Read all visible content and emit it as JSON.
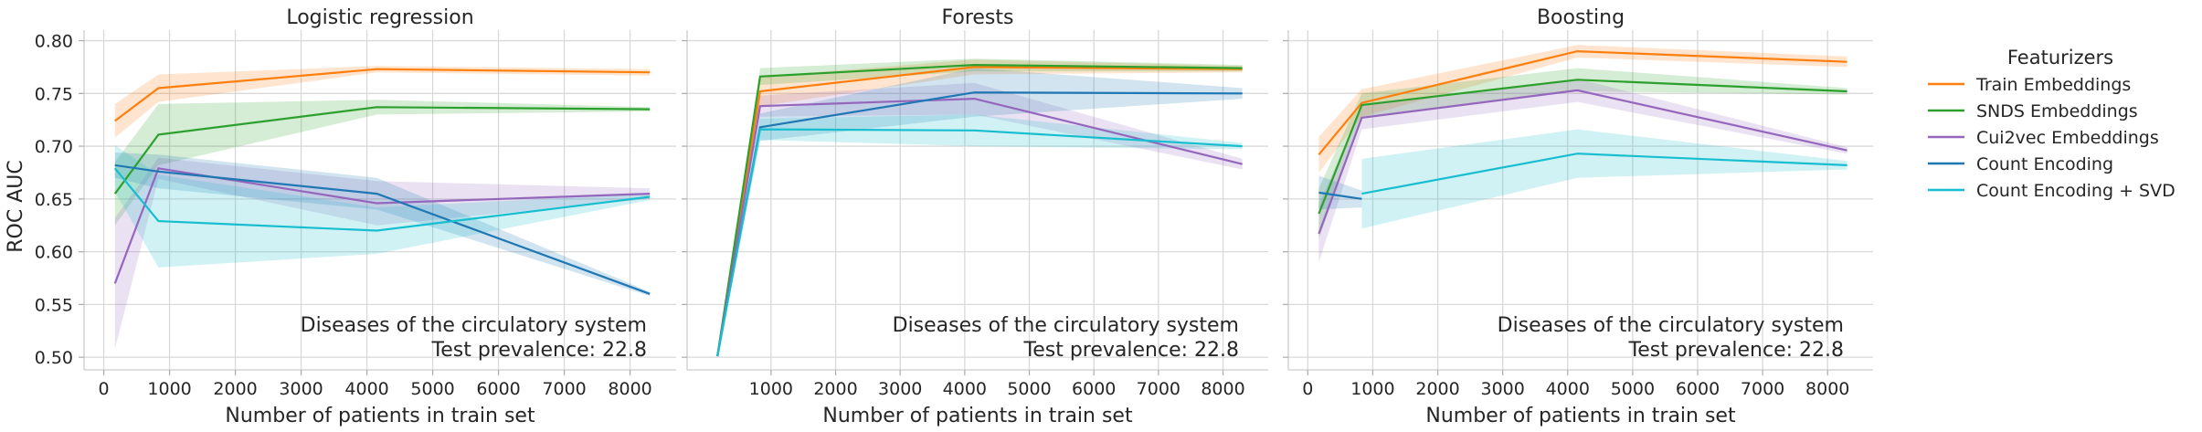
{
  "figure": {
    "ylabel": "ROC AUC",
    "xlabel": "Number of patients in train set",
    "annotation_line1": "Diseases of the circulatory system",
    "annotation_line2": "Test prevalence: 22.8"
  },
  "legend": {
    "title": "Featurizers",
    "placement": "outside-right"
  },
  "colors": {
    "Train Embeddings": "#ff7f0e",
    "SNDS Embeddings": "#2ca02c",
    "Cui2vec Embeddings": "#9467bd",
    "Count Encoding": "#1f77b4",
    "Count Encoding + SVD": "#17becf"
  },
  "chart_data": [
    {
      "type": "line",
      "title": "Logistic regression",
      "xlim": [
        -300,
        8700
      ],
      "ylim": [
        0.488,
        0.81
      ],
      "xticks": [
        0,
        1000,
        2000,
        3000,
        4000,
        5000,
        6000,
        7000,
        8000
      ],
      "yticks": [
        0.5,
        0.55,
        0.6,
        0.65,
        0.7,
        0.75,
        0.8
      ],
      "grid": true,
      "series": [
        {
          "name": "Train Embeddings",
          "x": [
            170,
            830,
            4150,
            8300
          ],
          "y": [
            0.724,
            0.755,
            0.773,
            0.77
          ],
          "lower": [
            0.708,
            0.742,
            0.77,
            0.767
          ],
          "upper": [
            0.74,
            0.768,
            0.776,
            0.773
          ]
        },
        {
          "name": "SNDS Embeddings",
          "x": [
            170,
            830,
            4150,
            8300
          ],
          "y": [
            0.655,
            0.711,
            0.737,
            0.735
          ],
          "lower": [
            0.625,
            0.682,
            0.73,
            0.733
          ],
          "upper": [
            0.685,
            0.74,
            0.744,
            0.737
          ]
        },
        {
          "name": "Cui2vec Embeddings",
          "x": [
            170,
            830,
            4150,
            8300
          ],
          "y": [
            0.57,
            0.679,
            0.646,
            0.655
          ],
          "lower": [
            0.508,
            0.669,
            0.625,
            0.65
          ],
          "upper": [
            0.632,
            0.689,
            0.667,
            0.66
          ]
        },
        {
          "name": "Count Encoding",
          "x": [
            170,
            830,
            4150,
            8300
          ],
          "y": [
            0.682,
            0.676,
            0.655,
            0.56
          ],
          "lower": [
            0.67,
            0.66,
            0.64,
            0.558
          ],
          "upper": [
            0.694,
            0.692,
            0.67,
            0.562
          ]
        },
        {
          "name": "Count Encoding + SVD",
          "x": [
            170,
            830,
            4150,
            8300
          ],
          "y": [
            0.679,
            0.629,
            0.62,
            0.652
          ],
          "lower": [
            0.657,
            0.585,
            0.598,
            0.649
          ],
          "upper": [
            0.701,
            0.673,
            0.642,
            0.655
          ]
        }
      ]
    },
    {
      "type": "line",
      "title": "Forests",
      "xlim": [
        -300,
        8700
      ],
      "ylim": [
        0.488,
        0.81
      ],
      "xticks": [
        1000,
        2000,
        3000,
        4000,
        5000,
        6000,
        7000,
        8000
      ],
      "yticks": [
        0.5,
        0.55,
        0.6,
        0.65,
        0.7,
        0.75,
        0.8
      ],
      "grid": true,
      "series": [
        {
          "name": "Train Embeddings",
          "x": [
            170,
            830,
            4150,
            8300
          ],
          "y": [
            0.501,
            0.752,
            0.775,
            0.773
          ],
          "lower": [
            0.5,
            0.738,
            0.768,
            0.77
          ],
          "upper": [
            0.502,
            0.766,
            0.782,
            0.776
          ]
        },
        {
          "name": "SNDS Embeddings",
          "x": [
            170,
            830,
            4150,
            8300
          ],
          "y": [
            0.501,
            0.766,
            0.777,
            0.774
          ],
          "lower": [
            0.5,
            0.758,
            0.771,
            0.771
          ],
          "upper": [
            0.502,
            0.774,
            0.783,
            0.777
          ]
        },
        {
          "name": "Cui2vec Embeddings",
          "x": [
            170,
            830,
            4150,
            8300
          ],
          "y": [
            0.501,
            0.738,
            0.745,
            0.683
          ],
          "lower": [
            0.5,
            0.728,
            0.73,
            0.678
          ],
          "upper": [
            0.502,
            0.748,
            0.76,
            0.688
          ]
        },
        {
          "name": "Count Encoding",
          "x": [
            170,
            830,
            4150,
            8300
          ],
          "y": [
            0.501,
            0.718,
            0.751,
            0.75
          ],
          "lower": [
            0.5,
            0.705,
            0.728,
            0.745
          ],
          "upper": [
            0.502,
            0.731,
            0.774,
            0.755
          ]
        },
        {
          "name": "Count Encoding + SVD",
          "x": [
            170,
            830,
            4150,
            8300
          ],
          "y": [
            0.501,
            0.716,
            0.715,
            0.7
          ],
          "lower": [
            0.5,
            0.706,
            0.7,
            0.697
          ],
          "upper": [
            0.502,
            0.726,
            0.73,
            0.703
          ]
        }
      ]
    },
    {
      "type": "line",
      "title": "Boosting",
      "xlim": [
        -300,
        8700
      ],
      "ylim": [
        0.488,
        0.81
      ],
      "xticks": [
        0,
        1000,
        2000,
        3000,
        4000,
        5000,
        6000,
        7000,
        8000
      ],
      "yticks": [
        0.5,
        0.55,
        0.6,
        0.65,
        0.7,
        0.75,
        0.8
      ],
      "grid": true,
      "series": [
        {
          "name": "Train Embeddings",
          "x": [
            170,
            830,
            4150,
            8300
          ],
          "y": [
            0.692,
            0.741,
            0.79,
            0.78
          ],
          "lower": [
            0.675,
            0.728,
            0.784,
            0.775
          ],
          "upper": [
            0.709,
            0.754,
            0.796,
            0.785
          ]
        },
        {
          "name": "SNDS Embeddings",
          "x": [
            170,
            830,
            4150,
            8300
          ],
          "y": [
            0.636,
            0.739,
            0.763,
            0.752
          ],
          "lower": [
            0.612,
            0.728,
            0.752,
            0.749
          ],
          "upper": [
            0.66,
            0.75,
            0.774,
            0.755
          ]
        },
        {
          "name": "Cui2vec Embeddings",
          "x": [
            170,
            830,
            4150,
            8300
          ],
          "y": [
            0.617,
            0.727,
            0.753,
            0.696
          ],
          "lower": [
            0.59,
            0.716,
            0.742,
            0.693
          ],
          "upper": [
            0.644,
            0.738,
            0.764,
            0.699
          ]
        },
        {
          "name": "Count Encoding",
          "x": [
            170,
            830
          ],
          "y": [
            0.656,
            0.65
          ],
          "lower": [
            0.64,
            0.642
          ],
          "upper": [
            0.672,
            0.658
          ]
        },
        {
          "name": "Count Encoding + SVD",
          "x": [
            830,
            4150,
            8300
          ],
          "y": [
            0.655,
            0.693,
            0.682
          ],
          "lower": [
            0.622,
            0.67,
            0.678
          ],
          "upper": [
            0.688,
            0.716,
            0.686
          ]
        }
      ]
    }
  ]
}
